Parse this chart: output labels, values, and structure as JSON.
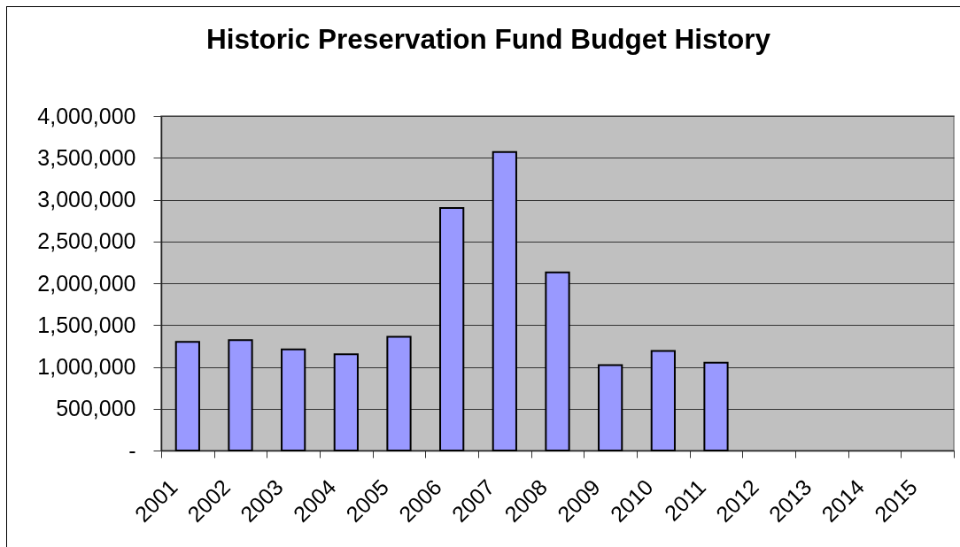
{
  "chart_data": {
    "type": "bar",
    "title": "Historic Preservation Fund Budget History",
    "categories": [
      "2001",
      "2002",
      "2003",
      "2004",
      "2005",
      "2006",
      "2007",
      "2008",
      "2009",
      "2010",
      "2011",
      "2012",
      "2013",
      "2014",
      "2015"
    ],
    "values": [
      1300000,
      1320000,
      1210000,
      1150000,
      1360000,
      2900000,
      3570000,
      2130000,
      1020000,
      1190000,
      1050000,
      null,
      null,
      null,
      null
    ],
    "color": "#9999ff",
    "ylim": [
      0,
      4000000
    ],
    "yticks": [
      {
        "value": 0,
        "label": "-"
      },
      {
        "value": 500000,
        "label": "500,000"
      },
      {
        "value": 1000000,
        "label": "1,000,000"
      },
      {
        "value": 1500000,
        "label": "1,500,000"
      },
      {
        "value": 2000000,
        "label": "2,000,000"
      },
      {
        "value": 2500000,
        "label": "2,500,000"
      },
      {
        "value": 3000000,
        "label": "3,000,000"
      },
      {
        "value": 3500000,
        "label": "3,500,000"
      },
      {
        "value": 4000000,
        "label": "4,000,000"
      }
    ],
    "grid": "y"
  }
}
